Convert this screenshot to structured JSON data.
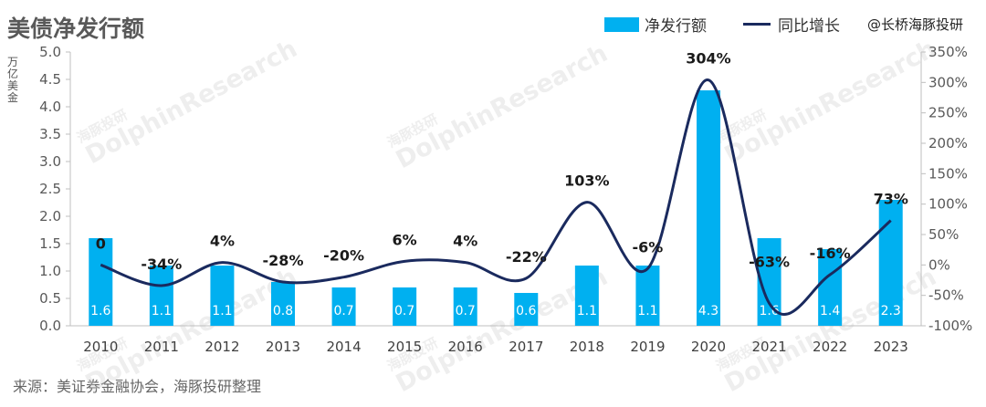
{
  "title": "美债净发行额",
  "legend": {
    "bar_label": "净发行额",
    "line_label": "同比增长"
  },
  "brand": "@长桥海豚投研",
  "unit_label": "万亿美金",
  "source": "来源：美证券金融协会，海豚投研整理",
  "watermark": {
    "cn": "海豚投研",
    "en": "DolphinResearch"
  },
  "colors": {
    "bar": "#00B0F0",
    "line": "#1A2A5E"
  },
  "chart_data": {
    "type": "bar",
    "categories": [
      "2010",
      "2011",
      "2012",
      "2013",
      "2014",
      "2015",
      "2016",
      "2017",
      "2018",
      "2019",
      "2020",
      "2021",
      "2022",
      "2023"
    ],
    "series": [
      {
        "name": "净发行额",
        "type": "bar",
        "axis": "left",
        "values": [
          1.6,
          1.1,
          1.1,
          0.8,
          0.7,
          0.7,
          0.7,
          0.6,
          1.1,
          1.1,
          4.3,
          1.6,
          1.4,
          2.3
        ],
        "labels": [
          "1.6",
          "1.1",
          "1.1",
          "0.8",
          "0.7",
          "0.7",
          "0.7",
          "0.6",
          "1.1",
          "1.1",
          "4.3",
          "1.6",
          "1.4",
          "2.3"
        ]
      },
      {
        "name": "同比增长",
        "type": "line",
        "axis": "right",
        "values": [
          0,
          -34,
          4,
          -28,
          -20,
          6,
          4,
          -22,
          103,
          -6,
          304,
          -63,
          -16,
          73
        ],
        "labels": [
          "0",
          "-34%",
          "4%",
          "-28%",
          "-20%",
          "6%",
          "4%",
          "-22%",
          "103%",
          "-6%",
          "304%",
          "-63%",
          "-16%",
          "73%"
        ]
      }
    ],
    "y_left": {
      "min": 0,
      "max": 5,
      "ticks": [
        "0.0",
        "0.5",
        "1.0",
        "1.5",
        "2.0",
        "2.5",
        "3.0",
        "3.5",
        "4.0",
        "4.5",
        "5.0"
      ]
    },
    "y_right": {
      "min": -100,
      "max": 350,
      "ticks": [
        "-100%",
        "-50%",
        "0%",
        "50%",
        "100%",
        "150%",
        "200%",
        "250%",
        "300%",
        "350%"
      ]
    },
    "grid": false,
    "legend_position": "top-right"
  }
}
